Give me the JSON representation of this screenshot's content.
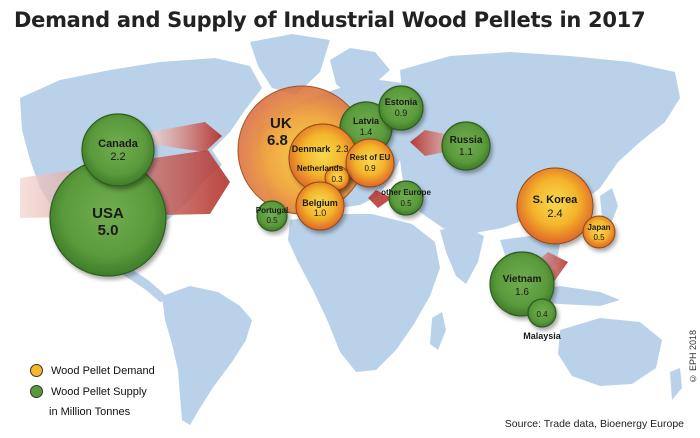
{
  "title": "Demand and Supply of Industrial Wood Pellets in 2017",
  "legend": {
    "demand_label": "Wood Pellet Demand",
    "supply_label": "Wood Pellet Supply",
    "unit_label": "in Million Tonnes",
    "demand_color": "#f4b62a",
    "supply_color": "#5b9a3c"
  },
  "source": "Source: Trade data, Bioenergy Europe",
  "copyright": "© EPH 2018",
  "colors": {
    "land": "#b9d2ea",
    "flow": "#b03a2e",
    "demand_center": "#f7d04a",
    "demand_edge": "#e05a20",
    "supply_center": "#6aa84a",
    "supply_edge": "#3b7a28"
  },
  "chart_data": {
    "type": "bubble-map",
    "title": "Demand and Supply of Industrial Wood Pellets in 2017",
    "unit": "Million Tonnes",
    "demand": [
      {
        "name": "UK",
        "value": 6.8
      },
      {
        "name": "Denmark",
        "value": 2.3
      },
      {
        "name": "Netherlands",
        "value": 0.3
      },
      {
        "name": "Rest of EU",
        "value": 0.9
      },
      {
        "name": "Belgium",
        "value": 1.0
      },
      {
        "name": "S. Korea",
        "value": 2.4
      },
      {
        "name": "Japan",
        "value": 0.5
      }
    ],
    "supply": [
      {
        "name": "Canada",
        "value": 2.2
      },
      {
        "name": "USA",
        "value": 5.0
      },
      {
        "name": "Latvia",
        "value": 1.4
      },
      {
        "name": "Estonia",
        "value": 0.9
      },
      {
        "name": "Russia",
        "value": 1.1
      },
      {
        "name": "other Europe",
        "value": 0.5
      },
      {
        "name": "Portugal",
        "value": 0.5
      },
      {
        "name": "Vietnam",
        "value": 1.6
      },
      {
        "name": "Malaysia",
        "value": 0.4
      }
    ]
  }
}
